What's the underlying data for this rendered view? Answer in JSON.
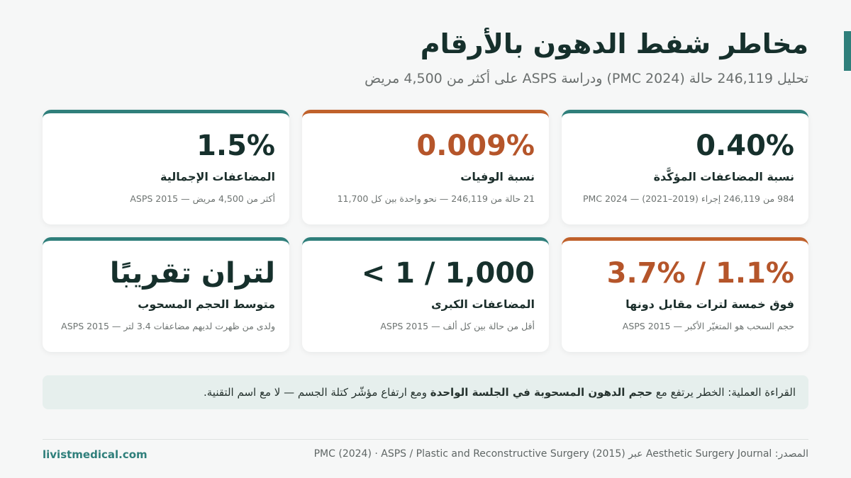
{
  "header": {
    "title": "مخاطر شفط الدهون بالأرقام",
    "subtitle": "تحليل 246,119 حالة (PMC 2024) ودراسة ASPS على أكثر من 4,500 مريض"
  },
  "cards": [
    {
      "value": "0.40%",
      "label": "نسبة المضاعفات المؤكَّدة",
      "note": "984 من 246,119 إجراء (2019–2021) — PMC 2024",
      "accent": "#2f7f7b"
    },
    {
      "value": "0.009%",
      "label": "نسبة الوفيات",
      "note": "21 حالة من 246,119 — نحو واحدة بين كل 11,700",
      "accent": "#c0612b"
    },
    {
      "value": "1.5%",
      "label": "المضاعفات الإجمالية",
      "note": "أكثر من 4,500 مريض — ASPS 2015",
      "accent": "#2f7f7b"
    },
    {
      "value": "3.7% / 1.1%",
      "label": "فوق خمسة لترات مقابل دونها",
      "note": "حجم السحب هو المتغيّر الأكبر — ASPS 2015",
      "accent": "#c0612b"
    },
    {
      "value": "< 1 / 1,000",
      "label": "المضاعفات الكبرى",
      "note": "أقل من حالة بين كل ألف — ASPS 2015",
      "accent": "#2f7f7b"
    },
    {
      "value": "لتران تقريبًا",
      "label": "متوسط الحجم المسحوب",
      "note": "ولدى من ظهرت لديهم مضاعفات 3.4 لتر — ASPS 2015",
      "accent": "#2f7f7b"
    }
  ],
  "takeaway": {
    "before": "القراءة العملية: الخطر يرتفع مع ",
    "bold": "حجم الدهون المسحوبة في الجلسة الواحدة",
    "after": " ومع ارتفاع مؤشّر كتلة الجسم — لا مع اسم التقنية."
  },
  "footer": {
    "source": "المصدر: Aesthetic Surgery Journal عبر PMC (2024) · ASPS / Plastic and Reconstructive Surgery (2015)",
    "brand": "livistmedical.com"
  }
}
